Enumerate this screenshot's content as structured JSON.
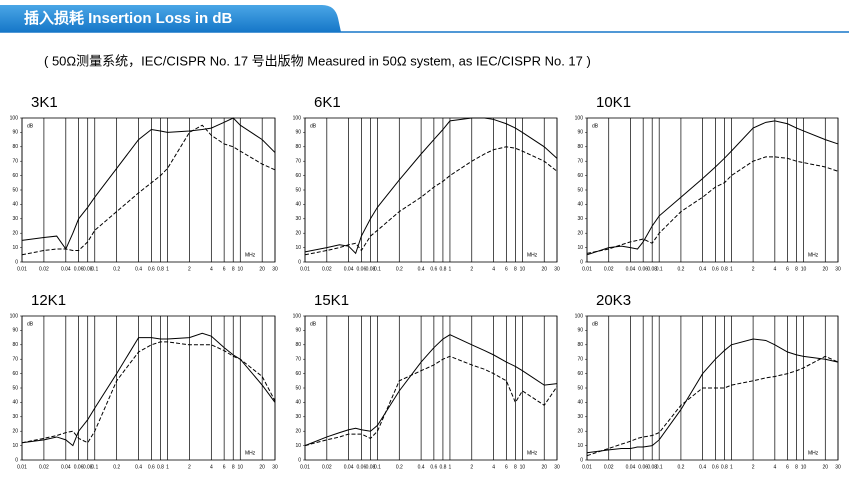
{
  "header": {
    "title": "插入损耗  Insertion Loss in dB",
    "subtitle": "( 50Ω测量系统，IEC/CISPR No. 17 号出版物 Measured in 50Ω system, as IEC/CISPR No. 17 )"
  },
  "chart_data": [
    {
      "type": "line",
      "title": "3K1",
      "xlabel": "MHz",
      "ylabel": "dB",
      "log_x": true,
      "grid": true,
      "x": [
        0.01,
        0.02,
        0.03,
        0.04,
        0.05,
        0.06,
        0.08,
        0.1,
        0.2,
        0.4,
        0.6,
        0.8,
        1,
        2,
        3,
        4,
        6,
        8,
        10,
        20,
        30
      ],
      "xlim": [
        0.01,
        30
      ],
      "xticks": [
        0.01,
        0.02,
        0.04,
        0.06,
        0.08,
        0.1,
        0.2,
        0.4,
        0.6,
        0.8,
        1,
        2,
        4,
        6,
        8,
        10,
        20,
        30
      ],
      "ylim": [
        0,
        100
      ],
      "yticks": [
        0,
        10,
        20,
        30,
        40,
        50,
        60,
        70,
        80,
        90,
        100
      ],
      "series": [
        {
          "color": "#000000",
          "dash": false,
          "values": [
            15,
            17,
            18,
            9,
            20,
            30,
            38,
            45,
            65,
            85,
            92,
            91,
            90,
            91,
            92,
            93,
            97,
            100,
            95,
            85,
            76
          ]
        },
        {
          "color": "#000000",
          "dash": true,
          "values": [
            5,
            8,
            9,
            9,
            8,
            8,
            14,
            22,
            35,
            48,
            55,
            60,
            65,
            90,
            95,
            88,
            82,
            80,
            77,
            68,
            64
          ]
        }
      ]
    },
    {
      "type": "line",
      "title": "6K1",
      "xlabel": "MHz",
      "ylabel": "dB",
      "log_x": true,
      "grid": true,
      "x": [
        0.01,
        0.02,
        0.03,
        0.04,
        0.05,
        0.06,
        0.08,
        0.1,
        0.2,
        0.4,
        0.6,
        0.8,
        1,
        2,
        3,
        4,
        6,
        8,
        10,
        20,
        30
      ],
      "xlim": [
        0.01,
        30
      ],
      "xticks": [
        0.01,
        0.02,
        0.04,
        0.06,
        0.08,
        0.1,
        0.2,
        0.4,
        0.6,
        0.8,
        1,
        2,
        4,
        6,
        8,
        10,
        20,
        30
      ],
      "ylim": [
        0,
        100
      ],
      "yticks": [
        0,
        10,
        20,
        30,
        40,
        50,
        60,
        70,
        80,
        90,
        100
      ],
      "series": [
        {
          "color": "#000000",
          "dash": false,
          "values": [
            7,
            10,
            12,
            11,
            6,
            18,
            30,
            38,
            57,
            75,
            85,
            92,
            98,
            100,
            100,
            99,
            96,
            93,
            90,
            80,
            72
          ]
        },
        {
          "color": "#000000",
          "dash": true,
          "values": [
            5,
            8,
            10,
            12,
            13,
            8,
            18,
            22,
            35,
            45,
            52,
            56,
            60,
            70,
            75,
            78,
            80,
            79,
            77,
            70,
            63
          ]
        }
      ]
    },
    {
      "type": "line",
      "title": "10K1",
      "xlabel": "MHz",
      "ylabel": "dB",
      "log_x": true,
      "grid": true,
      "x": [
        0.01,
        0.02,
        0.03,
        0.04,
        0.05,
        0.06,
        0.08,
        0.1,
        0.2,
        0.4,
        0.6,
        0.8,
        1,
        2,
        3,
        4,
        6,
        8,
        10,
        20,
        30
      ],
      "xlim": [
        0.01,
        30
      ],
      "xticks": [
        0.01,
        0.02,
        0.04,
        0.06,
        0.08,
        0.1,
        0.2,
        0.4,
        0.6,
        0.8,
        1,
        2,
        4,
        6,
        8,
        10,
        20,
        30
      ],
      "ylim": [
        0,
        100
      ],
      "yticks": [
        0,
        10,
        20,
        30,
        40,
        50,
        60,
        70,
        80,
        90,
        100
      ],
      "series": [
        {
          "color": "#000000",
          "dash": false,
          "values": [
            5,
            10,
            11,
            10,
            9,
            14,
            25,
            32,
            45,
            58,
            66,
            72,
            77,
            93,
            97,
            98,
            96,
            93,
            91,
            85,
            82
          ]
        },
        {
          "color": "#000000",
          "dash": true,
          "values": [
            6,
            9,
            12,
            14,
            15,
            16,
            13,
            20,
            35,
            45,
            52,
            55,
            60,
            70,
            73,
            73,
            72,
            70,
            69,
            66,
            63
          ]
        }
      ]
    },
    {
      "type": "line",
      "title": "12K1",
      "xlabel": "MHz",
      "ylabel": "dB",
      "log_x": true,
      "grid": true,
      "x": [
        0.01,
        0.02,
        0.03,
        0.04,
        0.05,
        0.06,
        0.08,
        0.1,
        0.2,
        0.4,
        0.6,
        0.8,
        1,
        2,
        3,
        4,
        6,
        8,
        10,
        20,
        30
      ],
      "xlim": [
        0.01,
        30
      ],
      "xticks": [
        0.01,
        0.02,
        0.04,
        0.06,
        0.08,
        0.1,
        0.2,
        0.4,
        0.6,
        0.8,
        1,
        2,
        4,
        6,
        8,
        10,
        20,
        30
      ],
      "ylim": [
        0,
        100
      ],
      "yticks": [
        0,
        10,
        20,
        30,
        40,
        50,
        60,
        70,
        80,
        90,
        100
      ],
      "series": [
        {
          "color": "#000000",
          "dash": false,
          "values": [
            12,
            14,
            16,
            14,
            10,
            20,
            28,
            36,
            60,
            85,
            85,
            84,
            84,
            85,
            88,
            86,
            78,
            73,
            70,
            52,
            40
          ]
        },
        {
          "color": "#000000",
          "dash": true,
          "values": [
            12,
            15,
            17,
            19,
            20,
            15,
            12,
            20,
            55,
            75,
            80,
            82,
            82,
            80,
            80,
            80,
            76,
            72,
            70,
            58,
            41
          ]
        }
      ]
    },
    {
      "type": "line",
      "title": "15K1",
      "xlabel": "MHz",
      "ylabel": "dB",
      "log_x": true,
      "grid": true,
      "x": [
        0.01,
        0.02,
        0.03,
        0.04,
        0.05,
        0.06,
        0.08,
        0.1,
        0.2,
        0.4,
        0.6,
        0.8,
        1,
        2,
        3,
        4,
        6,
        8,
        10,
        20,
        30
      ],
      "xlim": [
        0.01,
        30
      ],
      "xticks": [
        0.01,
        0.02,
        0.04,
        0.06,
        0.08,
        0.1,
        0.2,
        0.4,
        0.6,
        0.8,
        1,
        2,
        4,
        6,
        8,
        10,
        20,
        30
      ],
      "ylim": [
        0,
        100
      ],
      "yticks": [
        0,
        10,
        20,
        30,
        40,
        50,
        60,
        70,
        80,
        90,
        100
      ],
      "series": [
        {
          "color": "#000000",
          "dash": false,
          "values": [
            10,
            16,
            19,
            21,
            22,
            21,
            20,
            24,
            48,
            68,
            78,
            84,
            87,
            80,
            76,
            73,
            68,
            65,
            62,
            52,
            53
          ]
        },
        {
          "color": "#000000",
          "dash": true,
          "values": [
            10,
            14,
            16,
            18,
            18,
            18,
            15,
            20,
            55,
            62,
            66,
            70,
            72,
            66,
            63,
            60,
            55,
            40,
            48,
            38,
            51
          ]
        }
      ]
    },
    {
      "type": "line",
      "title": "20K3",
      "xlabel": "MHz",
      "ylabel": "dB",
      "log_x": true,
      "grid": true,
      "x": [
        0.01,
        0.02,
        0.03,
        0.04,
        0.05,
        0.06,
        0.08,
        0.1,
        0.2,
        0.4,
        0.6,
        0.8,
        1,
        2,
        3,
        4,
        6,
        8,
        10,
        20,
        30
      ],
      "xlim": [
        0.01,
        30
      ],
      "xticks": [
        0.01,
        0.02,
        0.04,
        0.06,
        0.08,
        0.1,
        0.2,
        0.4,
        0.6,
        0.8,
        1,
        2,
        4,
        6,
        8,
        10,
        20,
        30
      ],
      "ylim": [
        0,
        100
      ],
      "yticks": [
        0,
        10,
        20,
        30,
        40,
        50,
        60,
        70,
        80,
        90,
        100
      ],
      "series": [
        {
          "color": "#000000",
          "dash": false,
          "values": [
            5,
            7,
            8,
            8,
            9,
            9,
            10,
            14,
            35,
            60,
            70,
            76,
            80,
            84,
            83,
            80,
            75,
            73,
            72,
            70,
            68
          ]
        },
        {
          "color": "#000000",
          "dash": true,
          "values": [
            3,
            8,
            11,
            13,
            15,
            16,
            17,
            19,
            38,
            50,
            50,
            50,
            52,
            55,
            57,
            58,
            60,
            62,
            64,
            72,
            68
          ]
        }
      ]
    }
  ]
}
